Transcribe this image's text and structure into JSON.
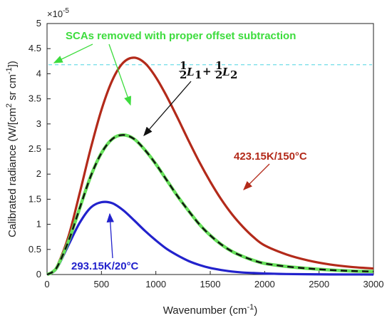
{
  "chart_data": {
    "type": "line",
    "title": "",
    "xlabel": "Wavenumber (cm⁻¹)",
    "xlabel_main": "Wavenumber (cm",
    "xlabel_sup": "-1",
    "xlabel_tail": ")",
    "ylabel": "Calibrated radiance (W/[cm² sr cm⁻¹])",
    "ylabel_main": "Calibrated radiance (W/[cm",
    "ylabel_sup1": "2",
    "ylabel_mid": " sr cm",
    "ylabel_sup2": "-1",
    "ylabel_tail": "])",
    "y_scale_label": "×10",
    "y_scale_exponent": "-5",
    "xlim": [
      0,
      3000
    ],
    "ylim": [
      0,
      5
    ],
    "y_multiplier": 1e-05,
    "grid": false,
    "legend": "none",
    "x_ticks": [
      "0",
      "500",
      "1000",
      "1500",
      "2000",
      "2500",
      "3000"
    ],
    "y_ticks": [
      "0",
      "0.5",
      "1",
      "1.5",
      "2",
      "2.5",
      "3",
      "3.5",
      "4",
      "4.5",
      "5"
    ],
    "series": [
      {
        "name": "423.15K/150°C",
        "color": "#b32a1a",
        "style": "solid",
        "x": [
          0,
          50,
          100,
          200,
          300,
          400,
          500,
          600,
          700,
          800,
          900,
          1000,
          1100,
          1200,
          1300,
          1400,
          1500,
          1600,
          1700,
          1800,
          1900,
          2000,
          2200,
          2400,
          2600,
          2800,
          3000
        ],
        "y": [
          0,
          0.05,
          0.2,
          0.78,
          1.62,
          2.5,
          3.28,
          3.87,
          4.22,
          4.32,
          4.21,
          3.93,
          3.55,
          3.12,
          2.67,
          2.24,
          1.85,
          1.5,
          1.2,
          0.95,
          0.74,
          0.58,
          0.4,
          0.28,
          0.2,
          0.15,
          0.12
        ]
      },
      {
        "name": "1/2 L1 + 1/2 L2",
        "color": "#111111",
        "style": "dashed",
        "x": [
          0,
          50,
          100,
          200,
          300,
          400,
          500,
          600,
          700,
          800,
          900,
          1000,
          1100,
          1200,
          1300,
          1400,
          1500,
          1600,
          1700,
          1800,
          1900,
          2000,
          2200,
          2400,
          2600,
          2800,
          3000
        ],
        "y": [
          0,
          0.05,
          0.18,
          0.68,
          1.32,
          1.95,
          2.42,
          2.7,
          2.78,
          2.7,
          2.48,
          2.2,
          1.88,
          1.56,
          1.27,
          1.0,
          0.78,
          0.6,
          0.46,
          0.36,
          0.28,
          0.22,
          0.16,
          0.12,
          0.09,
          0.07,
          0.06
        ]
      },
      {
        "name": "SCAs removed with proper offset subtraction",
        "color": "#66e05a",
        "style": "solid",
        "x": [
          0,
          50,
          100,
          200,
          300,
          400,
          500,
          600,
          700,
          800,
          900,
          1000,
          1100,
          1200,
          1300,
          1400,
          1500,
          1600,
          1700,
          1800,
          1900,
          2000,
          2200,
          2400,
          2600,
          2800,
          3000
        ],
        "y": [
          0,
          0.05,
          0.18,
          0.68,
          1.32,
          1.95,
          2.42,
          2.7,
          2.78,
          2.7,
          2.48,
          2.2,
          1.88,
          1.56,
          1.27,
          1.0,
          0.78,
          0.6,
          0.46,
          0.36,
          0.28,
          0.22,
          0.16,
          0.12,
          0.09,
          0.07,
          0.06
        ]
      },
      {
        "name": "293.15K/20°C",
        "color": "#2222cc",
        "style": "solid",
        "x": [
          0,
          50,
          100,
          200,
          300,
          400,
          500,
          600,
          700,
          800,
          900,
          1000,
          1100,
          1200,
          1300,
          1400,
          1500,
          1600,
          1700,
          1800,
          1900,
          2000,
          2200,
          2400,
          2600,
          2800,
          3000
        ],
        "y": [
          0,
          0.04,
          0.16,
          0.6,
          1.03,
          1.33,
          1.44,
          1.42,
          1.28,
          1.08,
          0.87,
          0.68,
          0.51,
          0.38,
          0.27,
          0.19,
          0.13,
          0.09,
          0.06,
          0.04,
          0.03,
          0.02,
          0.01,
          0.005,
          0.002,
          0.001,
          0.0
        ]
      }
    ],
    "annotations": {
      "green_text": "SCAs removed with proper offset subtraction",
      "math_label": "½L₁ + ½L₂",
      "math_half": "1",
      "math_den": "2",
      "math_L": "L",
      "math_sub1": "1",
      "math_sub2": "2",
      "math_plus": "+",
      "red_label": "423.15K/150°C",
      "blue_label": "293.15K/20°C",
      "green_cyan_dashed_y": 4.18
    }
  }
}
